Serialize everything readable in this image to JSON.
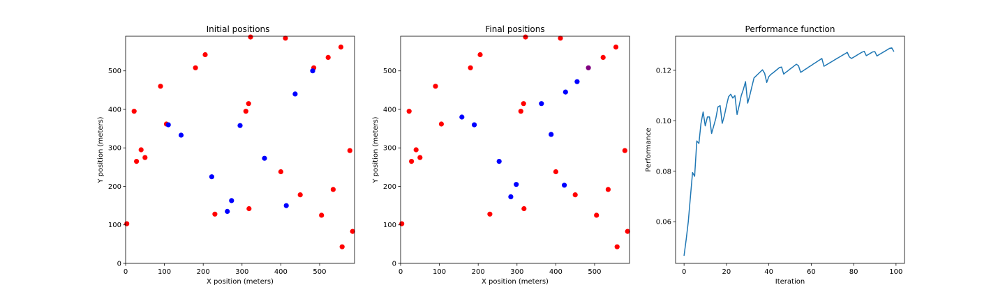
{
  "chart_data": [
    {
      "type": "scatter",
      "title": "Initial positions",
      "xlabel": "X position (meters)",
      "ylabel": "Y position (meters)",
      "xlim": [
        0,
        590
      ],
      "ylim": [
        0,
        590
      ],
      "xticks": [
        0,
        100,
        200,
        300,
        400,
        500
      ],
      "yticks": [
        0,
        100,
        200,
        300,
        400,
        500
      ],
      "grid": false,
      "series": [
        {
          "color": "#ff0000",
          "x": [
            22,
            28,
            40,
            50,
            90,
            105,
            180,
            205,
            230,
            310,
            317,
            318,
            322,
            400,
            412,
            450,
            485,
            505,
            522,
            535,
            555,
            558,
            578,
            585,
            3
          ],
          "y": [
            395,
            265,
            295,
            275,
            460,
            362,
            508,
            542,
            128,
            395,
            415,
            142,
            588,
            238,
            585,
            178,
            508,
            125,
            535,
            192,
            562,
            43,
            293,
            83,
            103
          ]
        },
        {
          "color": "#0000ff",
          "x": [
            110,
            143,
            222,
            262,
            273,
            295,
            358,
            414,
            437,
            482
          ],
          "y": [
            360,
            333,
            225,
            135,
            163,
            358,
            273,
            150,
            440,
            500
          ]
        }
      ]
    },
    {
      "type": "scatter",
      "title": "Final positions",
      "xlabel": "X position (meters)",
      "ylabel": "Y position (meters)",
      "xlim": [
        0,
        590
      ],
      "ylim": [
        0,
        590
      ],
      "xticks": [
        0,
        100,
        200,
        300,
        400,
        500
      ],
      "yticks": [
        0,
        100,
        200,
        300,
        400,
        500
      ],
      "grid": false,
      "series": [
        {
          "color": "#ff0000",
          "x": [
            22,
            28,
            40,
            50,
            90,
            105,
            180,
            205,
            230,
            310,
            317,
            318,
            322,
            400,
            412,
            450,
            505,
            522,
            535,
            555,
            558,
            578,
            585,
            3
          ],
          "y": [
            395,
            265,
            295,
            275,
            460,
            362,
            508,
            542,
            128,
            395,
            415,
            142,
            588,
            238,
            585,
            178,
            125,
            535,
            192,
            562,
            43,
            293,
            83,
            103
          ]
        },
        {
          "color": "#0000ff",
          "x": [
            158,
            190,
            254,
            284,
            298,
            363,
            388,
            422,
            425,
            455
          ],
          "y": [
            380,
            360,
            265,
            173,
            205,
            415,
            335,
            203,
            445,
            472
          ]
        },
        {
          "color": "#800080",
          "x": [
            484
          ],
          "y": [
            508
          ]
        }
      ]
    },
    {
      "type": "line",
      "title": "Performance function",
      "xlabel": "Iteration",
      "ylabel": "Performance",
      "xlim": [
        -4,
        104
      ],
      "ylim": [
        0.0435,
        0.1335
      ],
      "xticks": [
        0,
        20,
        40,
        60,
        80,
        100
      ],
      "yticks": [
        0.06,
        0.08,
        0.1,
        0.12
      ],
      "ytick_labels": [
        "0.06",
        "0.08",
        "0.10",
        "0.12"
      ],
      "grid": false,
      "series": [
        {
          "color": "#1f77b4",
          "x": [
            0,
            1,
            2,
            3,
            4,
            5,
            6,
            7,
            8,
            9,
            10,
            11,
            12,
            13,
            14,
            15,
            16,
            17,
            18,
            19,
            20,
            21,
            22,
            23,
            24,
            25,
            26,
            27,
            28,
            29,
            30,
            31,
            32,
            33,
            34,
            35,
            36,
            37,
            38,
            39,
            40,
            41,
            42,
            43,
            44,
            45,
            46,
            47,
            48,
            49,
            50,
            51,
            52,
            53,
            54,
            55,
            56,
            57,
            58,
            59,
            60,
            61,
            62,
            63,
            64,
            65,
            66,
            67,
            68,
            69,
            70,
            71,
            72,
            73,
            74,
            75,
            76,
            77,
            78,
            79,
            80,
            81,
            82,
            83,
            84,
            85,
            86,
            87,
            88,
            89,
            90,
            91,
            92,
            93,
            94,
            95,
            96,
            97,
            98,
            99
          ],
          "y": [
            0.0465,
            0.053,
            0.06,
            0.07,
            0.0795,
            0.078,
            0.092,
            0.091,
            0.099,
            0.1035,
            0.098,
            0.1015,
            0.1015,
            0.095,
            0.098,
            0.101,
            0.1055,
            0.106,
            0.099,
            0.102,
            0.106,
            0.1095,
            0.1105,
            0.109,
            0.11,
            0.1025,
            0.106,
            0.11,
            0.1125,
            0.1155,
            0.107,
            0.11,
            0.1135,
            0.117,
            0.1178,
            0.1186,
            0.1194,
            0.1202,
            0.1188,
            0.1152,
            0.1175,
            0.1184,
            0.119,
            0.1197,
            0.1204,
            0.1211,
            0.1213,
            0.1185,
            0.1192,
            0.1198,
            0.1205,
            0.1211,
            0.1218,
            0.1224,
            0.1218,
            0.1192,
            0.1197,
            0.1203,
            0.1208,
            0.1214,
            0.1219,
            0.1225,
            0.123,
            0.1236,
            0.1241,
            0.1247,
            0.1216,
            0.1221,
            0.1226,
            0.1231,
            0.1236,
            0.1241,
            0.1246,
            0.1251,
            0.1256,
            0.1261,
            0.1266,
            0.1271,
            0.1253,
            0.1247,
            0.1252,
            0.1257,
            0.1262,
            0.1267,
            0.1272,
            0.1275,
            0.1258,
            0.1263,
            0.1268,
            0.1273,
            0.1274,
            0.1257,
            0.1262,
            0.1267,
            0.1272,
            0.1277,
            0.1282,
            0.1287,
            0.1289,
            0.1274
          ]
        }
      ]
    }
  ]
}
